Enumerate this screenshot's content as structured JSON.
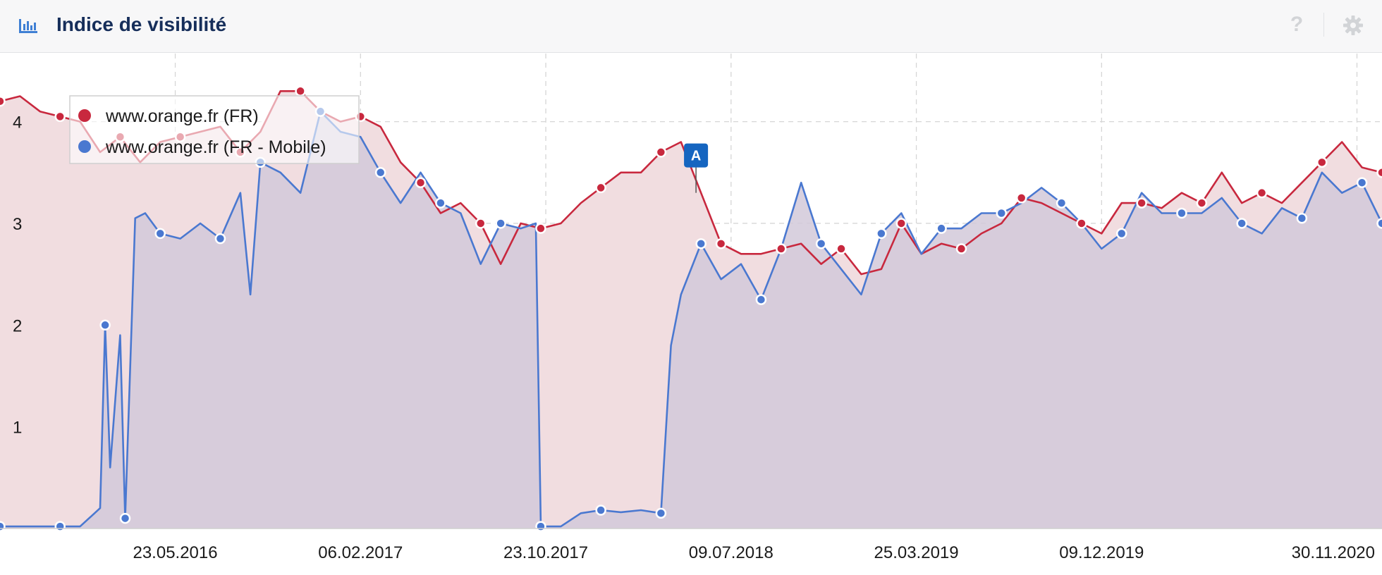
{
  "header": {
    "title": "Indice de visibilité",
    "icon": "bar-chart-icon",
    "help_glyph": "?",
    "help_icon": "question-icon",
    "settings_icon": "gear-icon"
  },
  "colors": {
    "desktop": "#c8283e",
    "mobile": "#4a78d0",
    "desktop_fill": "#f1dde0",
    "mobile_fill": "#d2c9d9",
    "marker": "#1565c0",
    "title": "#162e5a"
  },
  "chart_data": {
    "type": "area",
    "title": "",
    "xlabel": "",
    "ylabel": "",
    "ylim": [
      0,
      4.6
    ],
    "yticks": [
      1,
      2,
      3,
      4
    ],
    "x_range": [
      "2015-09-21",
      "2021-01-04"
    ],
    "xticks": [
      "23.05.2016",
      "06.02.2017",
      "23.10.2017",
      "09.07.2018",
      "25.03.2019",
      "09.12.2019",
      "30.11.2020"
    ],
    "grid": true,
    "legend_position": "top-left",
    "events": [
      {
        "label": "A",
        "date": "2018-05-21",
        "value": 3.55
      }
    ],
    "series": [
      {
        "name": "www.orange.fr (FR)",
        "color": "#c8283e",
        "points": [
          [
            "2015-09-21",
            4.2
          ],
          [
            "2015-10-19",
            4.25
          ],
          [
            "2015-11-16",
            4.1
          ],
          [
            "2015-12-14",
            4.05
          ],
          [
            "2016-01-11",
            4.0
          ],
          [
            "2016-02-08",
            3.7
          ],
          [
            "2016-03-07",
            3.85
          ],
          [
            "2016-04-04",
            3.6
          ],
          [
            "2016-05-02",
            3.8
          ],
          [
            "2016-05-30",
            3.85
          ],
          [
            "2016-06-27",
            3.9
          ],
          [
            "2016-07-25",
            3.95
          ],
          [
            "2016-08-22",
            3.7
          ],
          [
            "2016-09-19",
            3.9
          ],
          [
            "2016-10-17",
            4.3
          ],
          [
            "2016-11-14",
            4.3
          ],
          [
            "2016-12-12",
            4.1
          ],
          [
            "2017-01-09",
            4.0
          ],
          [
            "2017-02-06",
            4.05
          ],
          [
            "2017-03-06",
            3.95
          ],
          [
            "2017-04-03",
            3.6
          ],
          [
            "2017-05-01",
            3.4
          ],
          [
            "2017-05-29",
            3.1
          ],
          [
            "2017-06-26",
            3.2
          ],
          [
            "2017-07-24",
            3.0
          ],
          [
            "2017-08-21",
            2.6
          ],
          [
            "2017-09-18",
            3.0
          ],
          [
            "2017-10-16",
            2.95
          ],
          [
            "2017-11-13",
            3.0
          ],
          [
            "2017-12-11",
            3.2
          ],
          [
            "2018-01-08",
            3.35
          ],
          [
            "2018-02-05",
            3.5
          ],
          [
            "2018-03-05",
            3.5
          ],
          [
            "2018-04-02",
            3.7
          ],
          [
            "2018-04-30",
            3.8
          ],
          [
            "2018-05-28",
            3.3
          ],
          [
            "2018-06-25",
            2.8
          ],
          [
            "2018-07-23",
            2.7
          ],
          [
            "2018-08-20",
            2.7
          ],
          [
            "2018-09-17",
            2.75
          ],
          [
            "2018-10-15",
            2.8
          ],
          [
            "2018-11-12",
            2.6
          ],
          [
            "2018-12-10",
            2.75
          ],
          [
            "2019-01-07",
            2.5
          ],
          [
            "2019-02-04",
            2.55
          ],
          [
            "2019-03-04",
            3.0
          ],
          [
            "2019-04-01",
            2.7
          ],
          [
            "2019-04-29",
            2.8
          ],
          [
            "2019-05-27",
            2.75
          ],
          [
            "2019-06-24",
            2.9
          ],
          [
            "2019-07-22",
            3.0
          ],
          [
            "2019-08-19",
            3.25
          ],
          [
            "2019-09-16",
            3.2
          ],
          [
            "2019-10-14",
            3.1
          ],
          [
            "2019-11-11",
            3.0
          ],
          [
            "2019-12-09",
            2.9
          ],
          [
            "2020-01-06",
            3.2
          ],
          [
            "2020-02-03",
            3.2
          ],
          [
            "2020-03-02",
            3.15
          ],
          [
            "2020-03-30",
            3.3
          ],
          [
            "2020-04-27",
            3.2
          ],
          [
            "2020-05-25",
            3.5
          ],
          [
            "2020-06-22",
            3.2
          ],
          [
            "2020-07-20",
            3.3
          ],
          [
            "2020-08-17",
            3.2
          ],
          [
            "2020-09-14",
            3.4
          ],
          [
            "2020-10-12",
            3.6
          ],
          [
            "2020-11-09",
            3.8
          ],
          [
            "2020-12-07",
            3.55
          ],
          [
            "2021-01-04",
            3.5
          ]
        ]
      },
      {
        "name": "www.orange.fr (FR - Mobile)",
        "color": "#4a78d0",
        "points": [
          [
            "2015-09-21",
            0.02
          ],
          [
            "2015-10-19",
            0.02
          ],
          [
            "2015-11-16",
            0.02
          ],
          [
            "2015-12-14",
            0.02
          ],
          [
            "2016-01-11",
            0.02
          ],
          [
            "2016-02-08",
            0.2
          ],
          [
            "2016-02-15",
            2.0
          ],
          [
            "2016-02-22",
            0.6
          ],
          [
            "2016-03-07",
            1.9
          ],
          [
            "2016-03-14",
            0.1
          ],
          [
            "2016-03-28",
            3.05
          ],
          [
            "2016-04-11",
            3.1
          ],
          [
            "2016-05-02",
            2.9
          ],
          [
            "2016-05-30",
            2.85
          ],
          [
            "2016-06-27",
            3.0
          ],
          [
            "2016-07-25",
            2.85
          ],
          [
            "2016-08-22",
            3.3
          ],
          [
            "2016-09-05",
            2.3
          ],
          [
            "2016-09-19",
            3.6
          ],
          [
            "2016-10-17",
            3.5
          ],
          [
            "2016-11-14",
            3.3
          ],
          [
            "2016-12-12",
            4.1
          ],
          [
            "2017-01-09",
            3.9
          ],
          [
            "2017-02-06",
            3.85
          ],
          [
            "2017-03-06",
            3.5
          ],
          [
            "2017-04-03",
            3.2
          ],
          [
            "2017-05-01",
            3.5
          ],
          [
            "2017-05-29",
            3.2
          ],
          [
            "2017-06-26",
            3.1
          ],
          [
            "2017-07-24",
            2.6
          ],
          [
            "2017-08-21",
            3.0
          ],
          [
            "2017-09-18",
            2.95
          ],
          [
            "2017-10-09",
            3.0
          ],
          [
            "2017-10-16",
            0.02
          ],
          [
            "2017-11-13",
            0.02
          ],
          [
            "2017-12-11",
            0.15
          ],
          [
            "2018-01-08",
            0.18
          ],
          [
            "2018-02-05",
            0.16
          ],
          [
            "2018-03-05",
            0.18
          ],
          [
            "2018-04-02",
            0.15
          ],
          [
            "2018-04-16",
            1.8
          ],
          [
            "2018-04-30",
            2.3
          ],
          [
            "2018-05-28",
            2.8
          ],
          [
            "2018-06-25",
            2.45
          ],
          [
            "2018-07-23",
            2.6
          ],
          [
            "2018-08-20",
            2.25
          ],
          [
            "2018-09-17",
            2.75
          ],
          [
            "2018-10-15",
            3.4
          ],
          [
            "2018-11-12",
            2.8
          ],
          [
            "2018-12-10",
            2.55
          ],
          [
            "2019-01-07",
            2.3
          ],
          [
            "2019-02-04",
            2.9
          ],
          [
            "2019-03-04",
            3.1
          ],
          [
            "2019-04-01",
            2.7
          ],
          [
            "2019-04-29",
            2.95
          ],
          [
            "2019-05-27",
            2.95
          ],
          [
            "2019-06-24",
            3.1
          ],
          [
            "2019-07-22",
            3.1
          ],
          [
            "2019-08-19",
            3.2
          ],
          [
            "2019-09-16",
            3.35
          ],
          [
            "2019-10-14",
            3.2
          ],
          [
            "2019-11-11",
            3.0
          ],
          [
            "2019-12-09",
            2.75
          ],
          [
            "2020-01-06",
            2.9
          ],
          [
            "2020-02-03",
            3.3
          ],
          [
            "2020-03-02",
            3.1
          ],
          [
            "2020-03-30",
            3.1
          ],
          [
            "2020-04-27",
            3.1
          ],
          [
            "2020-05-25",
            3.25
          ],
          [
            "2020-06-22",
            3.0
          ],
          [
            "2020-07-20",
            2.9
          ],
          [
            "2020-08-17",
            3.15
          ],
          [
            "2020-09-14",
            3.05
          ],
          [
            "2020-10-12",
            3.5
          ],
          [
            "2020-11-09",
            3.3
          ],
          [
            "2020-12-07",
            3.4
          ],
          [
            "2021-01-04",
            3.0
          ]
        ]
      }
    ]
  }
}
